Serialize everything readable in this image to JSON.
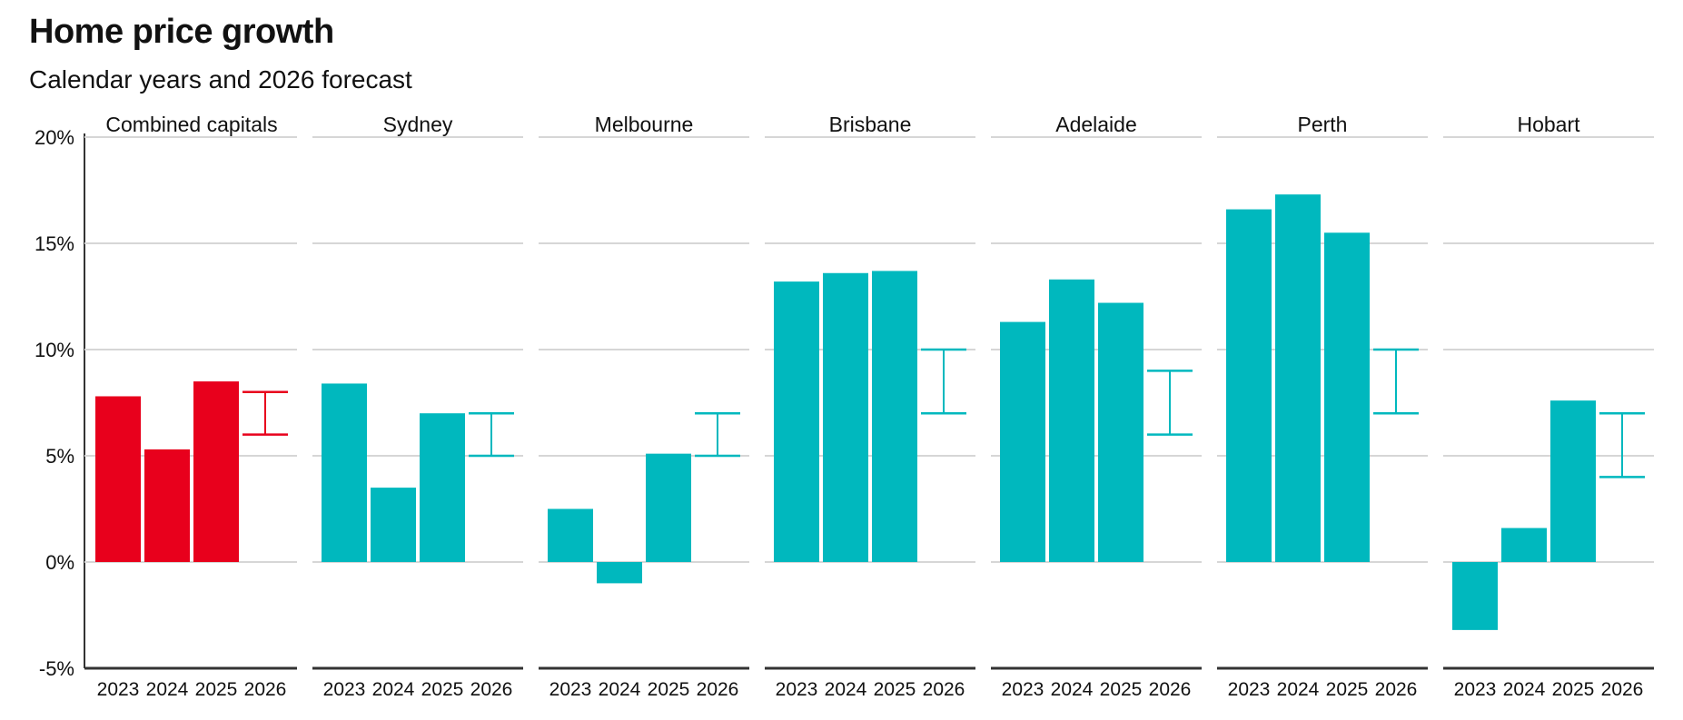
{
  "title": "Home price growth",
  "subtitle": "Calendar years and 2026 forecast",
  "chart_data": {
    "type": "bar",
    "ylim": [
      -5,
      20
    ],
    "yticks": [
      -5,
      0,
      5,
      10,
      15,
      20
    ],
    "ytick_labels": [
      "-5%",
      "0%",
      "5%",
      "10%",
      "15%",
      "20%"
    ],
    "grid": true,
    "categories": [
      "2023",
      "2024",
      "2025",
      "2026"
    ],
    "colors": {
      "highlight": "#e8001c",
      "default": "#00b8be",
      "grid": "#d6d6d6",
      "axis": "#333333"
    },
    "panels": [
      {
        "name": "Combined capitals",
        "highlight": true,
        "values": [
          7.8,
          5.3,
          8.5
        ],
        "forecast_range": [
          6,
          8
        ]
      },
      {
        "name": "Sydney",
        "highlight": false,
        "values": [
          8.4,
          3.5,
          7.0
        ],
        "forecast_range": [
          5,
          7
        ]
      },
      {
        "name": "Melbourne",
        "highlight": false,
        "values": [
          2.5,
          -1.0,
          5.1
        ],
        "forecast_range": [
          5,
          7
        ]
      },
      {
        "name": "Brisbane",
        "highlight": false,
        "values": [
          13.2,
          13.6,
          13.7
        ],
        "forecast_range": [
          7,
          10
        ]
      },
      {
        "name": "Adelaide",
        "highlight": false,
        "values": [
          11.3,
          13.3,
          12.2
        ],
        "forecast_range": [
          6,
          9
        ]
      },
      {
        "name": "Perth",
        "highlight": false,
        "values": [
          16.6,
          17.3,
          15.5
        ],
        "forecast_range": [
          7,
          10
        ]
      },
      {
        "name": "Hobart",
        "highlight": false,
        "values": [
          -3.2,
          1.6,
          7.6
        ],
        "forecast_range": [
          4,
          7
        ]
      }
    ]
  }
}
